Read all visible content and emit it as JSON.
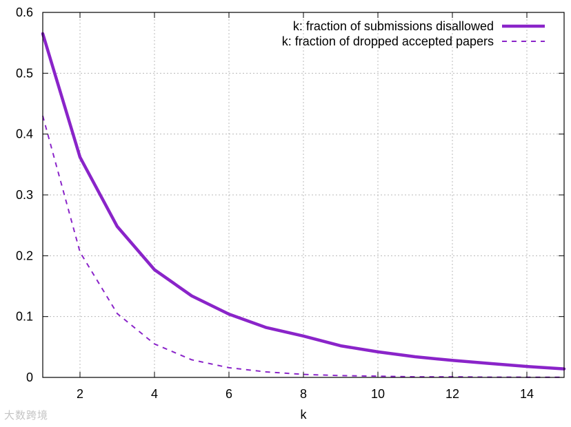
{
  "chart_data": {
    "type": "line",
    "title": "",
    "xlabel": "k",
    "ylabel": "",
    "xlim": [
      1,
      15
    ],
    "ylim": [
      0,
      0.6
    ],
    "xticks": [
      2,
      4,
      6,
      8,
      10,
      12,
      14
    ],
    "yticks": [
      0,
      0.1,
      0.2,
      0.3,
      0.4,
      0.5,
      0.6
    ],
    "grid": true,
    "legend_position": "top-right",
    "x": [
      1,
      2,
      3,
      4,
      5,
      6,
      7,
      8,
      9,
      10,
      11,
      12,
      13,
      14,
      15
    ],
    "series": [
      {
        "name": "k: fraction of submissions disallowed",
        "style": "solid",
        "color": "#8a24c9",
        "values": [
          0.565,
          0.362,
          0.248,
          0.177,
          0.134,
          0.104,
          0.082,
          0.068,
          0.052,
          0.042,
          0.034,
          0.028,
          0.023,
          0.018,
          0.014
        ]
      },
      {
        "name": "k: fraction of dropped accepted papers",
        "style": "dashed",
        "color": "#8a24c9",
        "values": [
          0.43,
          0.206,
          0.105,
          0.055,
          0.029,
          0.016,
          0.009,
          0.005,
          0.003,
          0.002,
          0.001,
          0.001,
          0.0005,
          0.0003,
          0.0002
        ]
      }
    ]
  },
  "watermark": "大数跨境"
}
